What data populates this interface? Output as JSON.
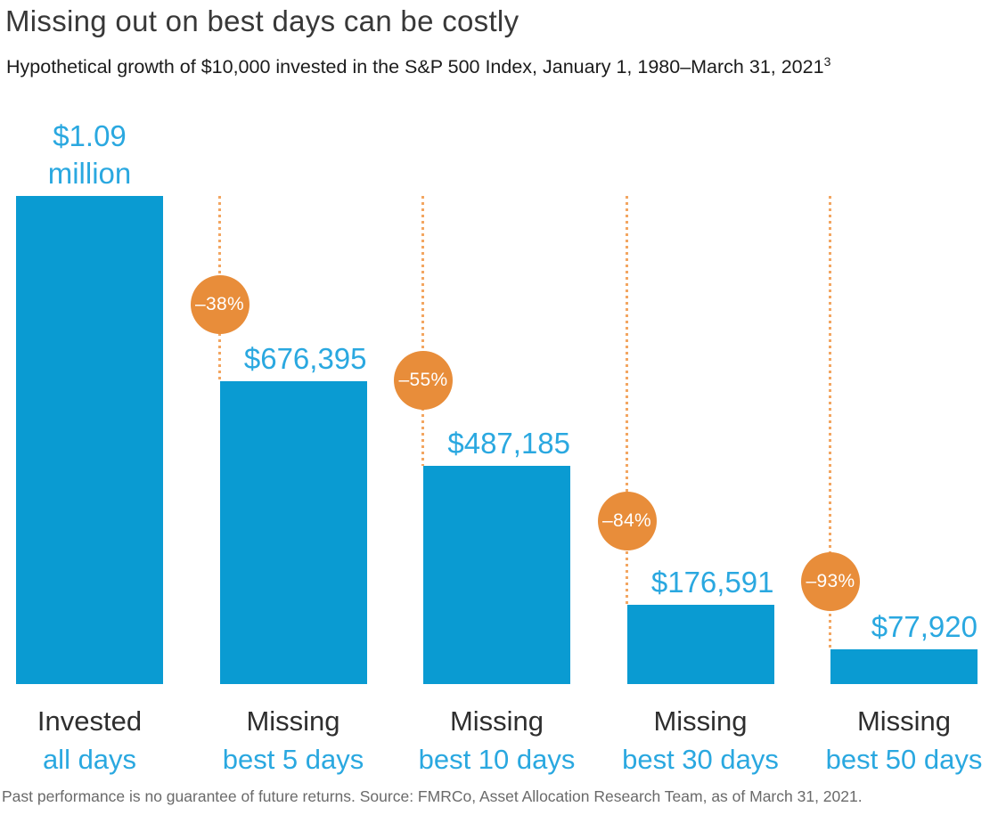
{
  "page": {
    "title": "Missing out on best days can be costly",
    "subtitle": "Hypothetical growth of $10,000 invested in the S&P 500 Index, January 1, 1980–March 31, 2021",
    "subtitle_superscript": "3",
    "footnote": "Past performance is no guarantee of future returns. Source: FMRCo, Asset Allocation Research Team, as of March 31, 2021."
  },
  "colors": {
    "bar_blue": "#0a9bd2",
    "label_blue": "#2aa8e0",
    "badge_orange": "#e88d3a",
    "dotted_orange": "#f3a661",
    "title_gray": "#383838",
    "category_dark": "#2e2e2e",
    "footnote_gray": "#6a6a6a"
  },
  "chart_data": {
    "type": "bar",
    "title": "Missing out on best days can be costly",
    "subtitle": "Hypothetical growth of $10,000 invested in the S&P 500 Index, January 1, 1980–March 31, 2021",
    "initial_investment": 10000,
    "unit": "USD",
    "ylim": [
      0,
      1090000
    ],
    "grid": false,
    "legend": "none",
    "categories": [
      {
        "label_line1": "Invested",
        "label_line2": "all days",
        "value": 1090000,
        "value_label_lines": [
          "$1.09",
          "million"
        ],
        "pct_change": null
      },
      {
        "label_line1": "Missing",
        "label_line2": "best 5 days",
        "value": 676395,
        "value_label_lines": [
          "$676,395"
        ],
        "pct_change": "–38%"
      },
      {
        "label_line1": "Missing",
        "label_line2": "best 10 days",
        "value": 487185,
        "value_label_lines": [
          "$487,185"
        ],
        "pct_change": "–55%"
      },
      {
        "label_line1": "Missing",
        "label_line2": "best 30 days",
        "value": 176591,
        "value_label_lines": [
          "$176,591"
        ],
        "pct_change": "–84%"
      },
      {
        "label_line1": "Missing",
        "label_line2": "best 50 days",
        "value": 77920,
        "value_label_lines": [
          "$77,920"
        ],
        "pct_change": "–93%"
      }
    ]
  }
}
